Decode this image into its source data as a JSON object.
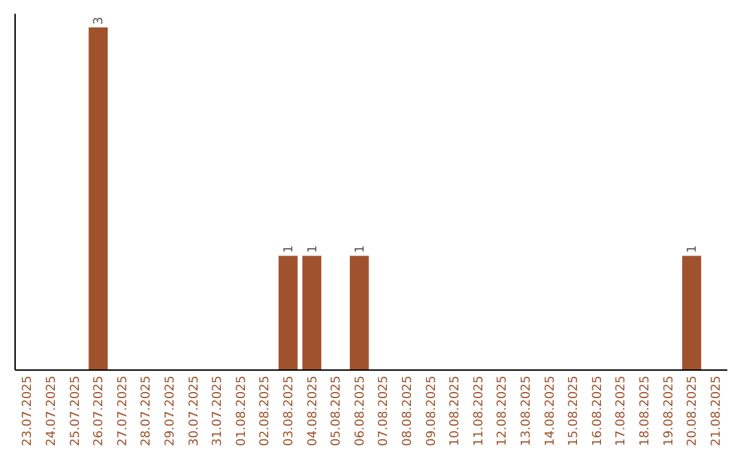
{
  "chart_data": {
    "type": "bar",
    "categories": [
      "23.07.2025",
      "24.07.2025",
      "25.07.2025",
      "26.07.2025",
      "27.07.2025",
      "28.07.2025",
      "29.07.2025",
      "30.07.2025",
      "31.07.2025",
      "01.08.2025",
      "02.08.2025",
      "03.08.2025",
      "04.08.2025",
      "05.08.2025",
      "06.08.2025",
      "07.08.2025",
      "08.08.2025",
      "09.08.2025",
      "10.08.2025",
      "11.08.2025",
      "12.08.2025",
      "13.08.2025",
      "14.08.2025",
      "15.08.2025",
      "16.08.2025",
      "17.08.2025",
      "18.08.2025",
      "19.08.2025",
      "20.08.2025",
      "21.08.2025"
    ],
    "values": [
      0,
      0,
      0,
      3,
      0,
      0,
      0,
      0,
      0,
      0,
      0,
      1,
      1,
      0,
      1,
      0,
      0,
      0,
      0,
      0,
      0,
      0,
      0,
      0,
      0,
      0,
      0,
      0,
      1,
      0
    ],
    "value_labels": [
      null,
      null,
      null,
      "3",
      null,
      null,
      null,
      null,
      null,
      null,
      null,
      "1",
      "1",
      null,
      "1",
      null,
      null,
      null,
      null,
      null,
      null,
      null,
      null,
      null,
      null,
      null,
      null,
      null,
      "1",
      null
    ],
    "color": "#a0522d"
  }
}
